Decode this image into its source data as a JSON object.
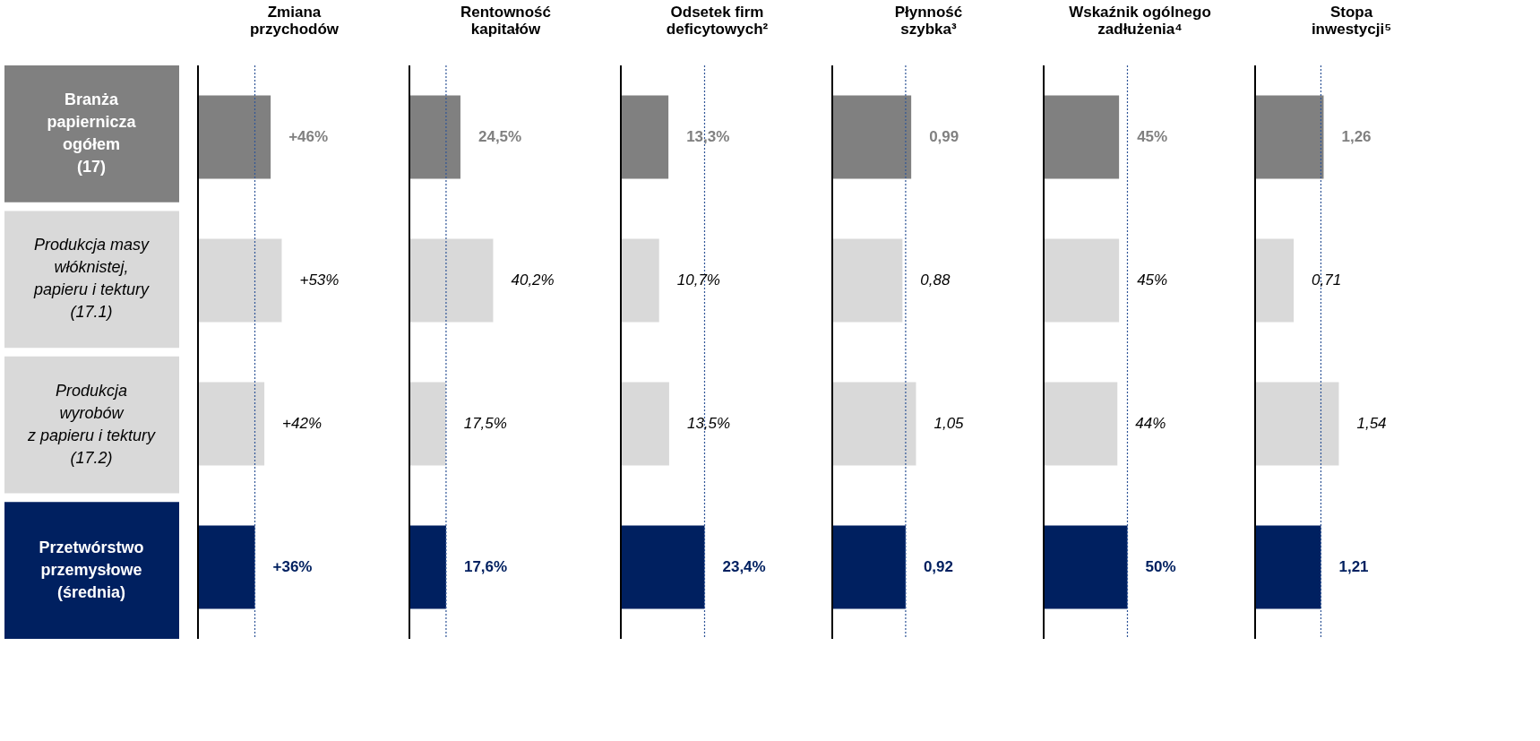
{
  "chart_data": [
    {
      "type": "bar",
      "orientation": "horizontal",
      "title": "Zmiana\nprzychodów",
      "categories": [
        "Branża\npapiernicza\nogółem\n(17)",
        "Produkcja masy\nwłóknistej,\npapieru i tektury\n(17.1)",
        "Produkcja\nwyrobów\nz papieru i tektury\n(17.2)",
        "Przetwórstwo\nprzemysłowe\n(średnia)"
      ],
      "values": [
        46,
        53,
        42,
        36
      ],
      "value_labels": [
        "+46%",
        "+53%",
        "+42%",
        "+36%"
      ],
      "colors": [
        "#808080",
        "#d9d9d9",
        "#d9d9d9",
        "#002060"
      ],
      "ref_lines": [
        {
          "axis": "x",
          "value": 36,
          "color": "#2f5597",
          "line_style": "dotted"
        }
      ]
    },
    {
      "type": "bar",
      "orientation": "horizontal",
      "title": "Rentowność\nkapitałów",
      "values": [
        24.5,
        40.2,
        17.5,
        17.6
      ],
      "value_labels": [
        "24,5%",
        "40,2%",
        "17,5%",
        "17,6%"
      ],
      "colors": [
        "#808080",
        "#d9d9d9",
        "#d9d9d9",
        "#002060"
      ],
      "ref_lines": [
        {
          "axis": "x",
          "value": 17.6,
          "color": "#2f5597",
          "line_style": "dotted"
        }
      ],
      "tick_labels": false
    },
    {
      "type": "bar",
      "orientation": "horizontal",
      "title": "Odsetek firm\ndeficytowych²",
      "values": [
        13.3,
        10.7,
        13.5,
        23.4
      ],
      "value_labels": [
        "13,3%",
        "10,7%",
        "13,5%",
        "23,4%"
      ],
      "colors": [
        "#808080",
        "#d9d9d9",
        "#d9d9d9",
        "#002060"
      ],
      "ref_lines": [
        {
          "axis": "x",
          "value": 23.4,
          "color": "#2f5597",
          "line_style": "dotted"
        }
      ],
      "tick_labels": false
    },
    {
      "type": "bar",
      "orientation": "horizontal",
      "title": "Płynność\nszybka³",
      "values": [
        0.99,
        0.88,
        1.05,
        0.92
      ],
      "value_labels": [
        "0,99",
        "0,88",
        "1,05",
        "0,92"
      ],
      "colors": [
        "#808080",
        "#d9d9d9",
        "#d9d9d9",
        "#002060"
      ],
      "ref_lines": [
        {
          "axis": "x",
          "value": 0.92,
          "color": "#2f5597",
          "line_style": "dotted"
        }
      ],
      "tick_labels": false
    },
    {
      "type": "bar",
      "orientation": "horizontal",
      "title": "Wskaźnik ogólnego\nzadłużenia⁴",
      "values": [
        45,
        45,
        44,
        50
      ],
      "value_labels": [
        "45%",
        "45%",
        "44%",
        "50%"
      ],
      "colors": [
        "#808080",
        "#d9d9d9",
        "#d9d9d9",
        "#002060"
      ],
      "ref_lines": [
        {
          "axis": "x",
          "value": 50,
          "color": "#2f5597",
          "line_style": "dotted"
        }
      ],
      "tick_labels": false
    },
    {
      "type": "bar",
      "orientation": "horizontal",
      "title": "Stopa\ninwestycji⁵",
      "values": [
        1.26,
        0.71,
        1.54,
        1.21
      ],
      "value_labels": [
        "1,26",
        "0,71",
        "1,54",
        "1,21"
      ],
      "colors": [
        "#808080",
        "#d9d9d9",
        "#d9d9d9",
        "#002060"
      ],
      "ref_lines": [
        {
          "axis": "x",
          "value": 1.21,
          "color": "#2f5597",
          "line_style": "dotted"
        }
      ],
      "tick_labels": false
    }
  ]
}
